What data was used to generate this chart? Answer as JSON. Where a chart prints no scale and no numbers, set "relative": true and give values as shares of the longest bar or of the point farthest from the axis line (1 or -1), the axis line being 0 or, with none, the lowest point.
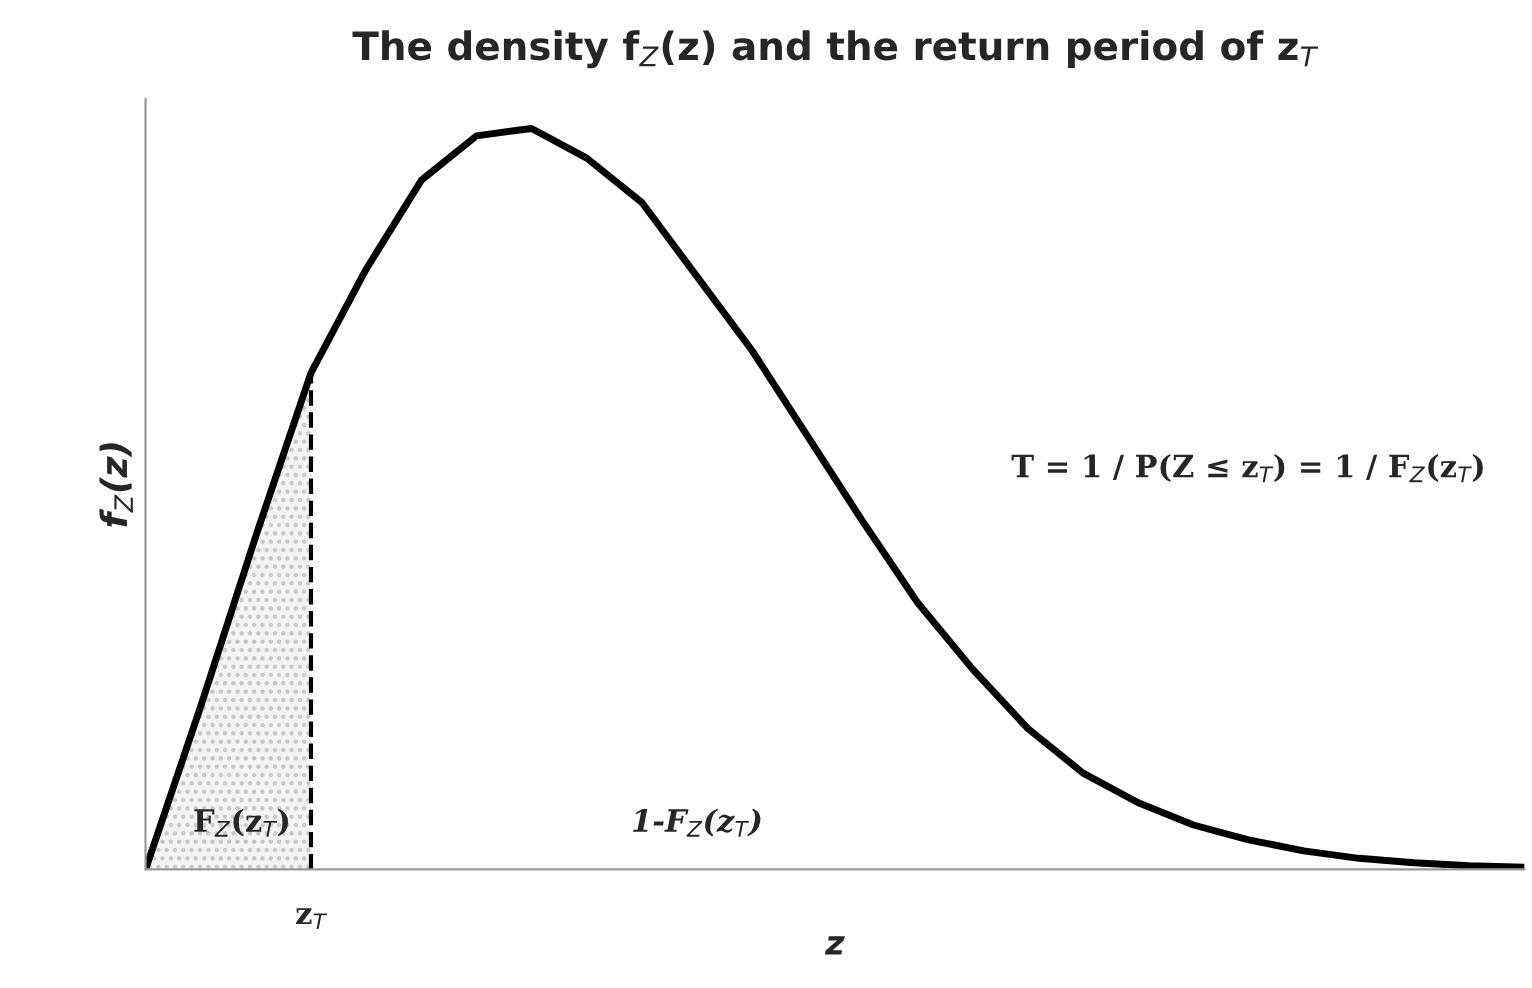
{
  "chart_data": {
    "type": "line",
    "relative": true,
    "title": "The density f$_{Z}$(z) and the return period of z$_{T}$",
    "xlabel": "z",
    "ylabel": "f$_{Z}$(z)",
    "categories": [
      null,
      null,
      null,
      null,
      null,
      null,
      null,
      null,
      null,
      null,
      null,
      null,
      null,
      null,
      null,
      null,
      null,
      null,
      null,
      null,
      null,
      null,
      null,
      null,
      null,
      null
    ],
    "series": [
      {
        "type": "area",
        "color": "#c8c8c8",
        "values": [
          0,
          0.22,
          0.45,
          0.67,
          null,
          null,
          null,
          null,
          null,
          null,
          null,
          null,
          null,
          null,
          null,
          null,
          null,
          null,
          null,
          null,
          null,
          null,
          null,
          null,
          null,
          null
        ]
      },
      {
        "color": "#000000",
        "values": [
          0,
          0.22,
          0.45,
          0.67,
          0.81,
          0.93,
          0.99,
          1.0,
          0.96,
          0.9,
          0.8,
          0.7,
          0.585,
          0.47,
          0.36,
          0.27,
          0.19,
          0.13,
          0.09,
          0.06,
          0.04,
          0.025,
          0.015,
          0.009,
          0.005,
          0.003
        ]
      }
    ],
    "annotations": [
      "F$_{Z}$(z$_{T}$)",
      "1-F$_{Z}$(z$_{T}$)",
      "T = 1 / P(Z ≤ z$_{T}$) = 1 / F$_{Z}$(z$_{T}$)",
      "z$_{T}$"
    ],
    "grid": false,
    "legend": false
  }
}
